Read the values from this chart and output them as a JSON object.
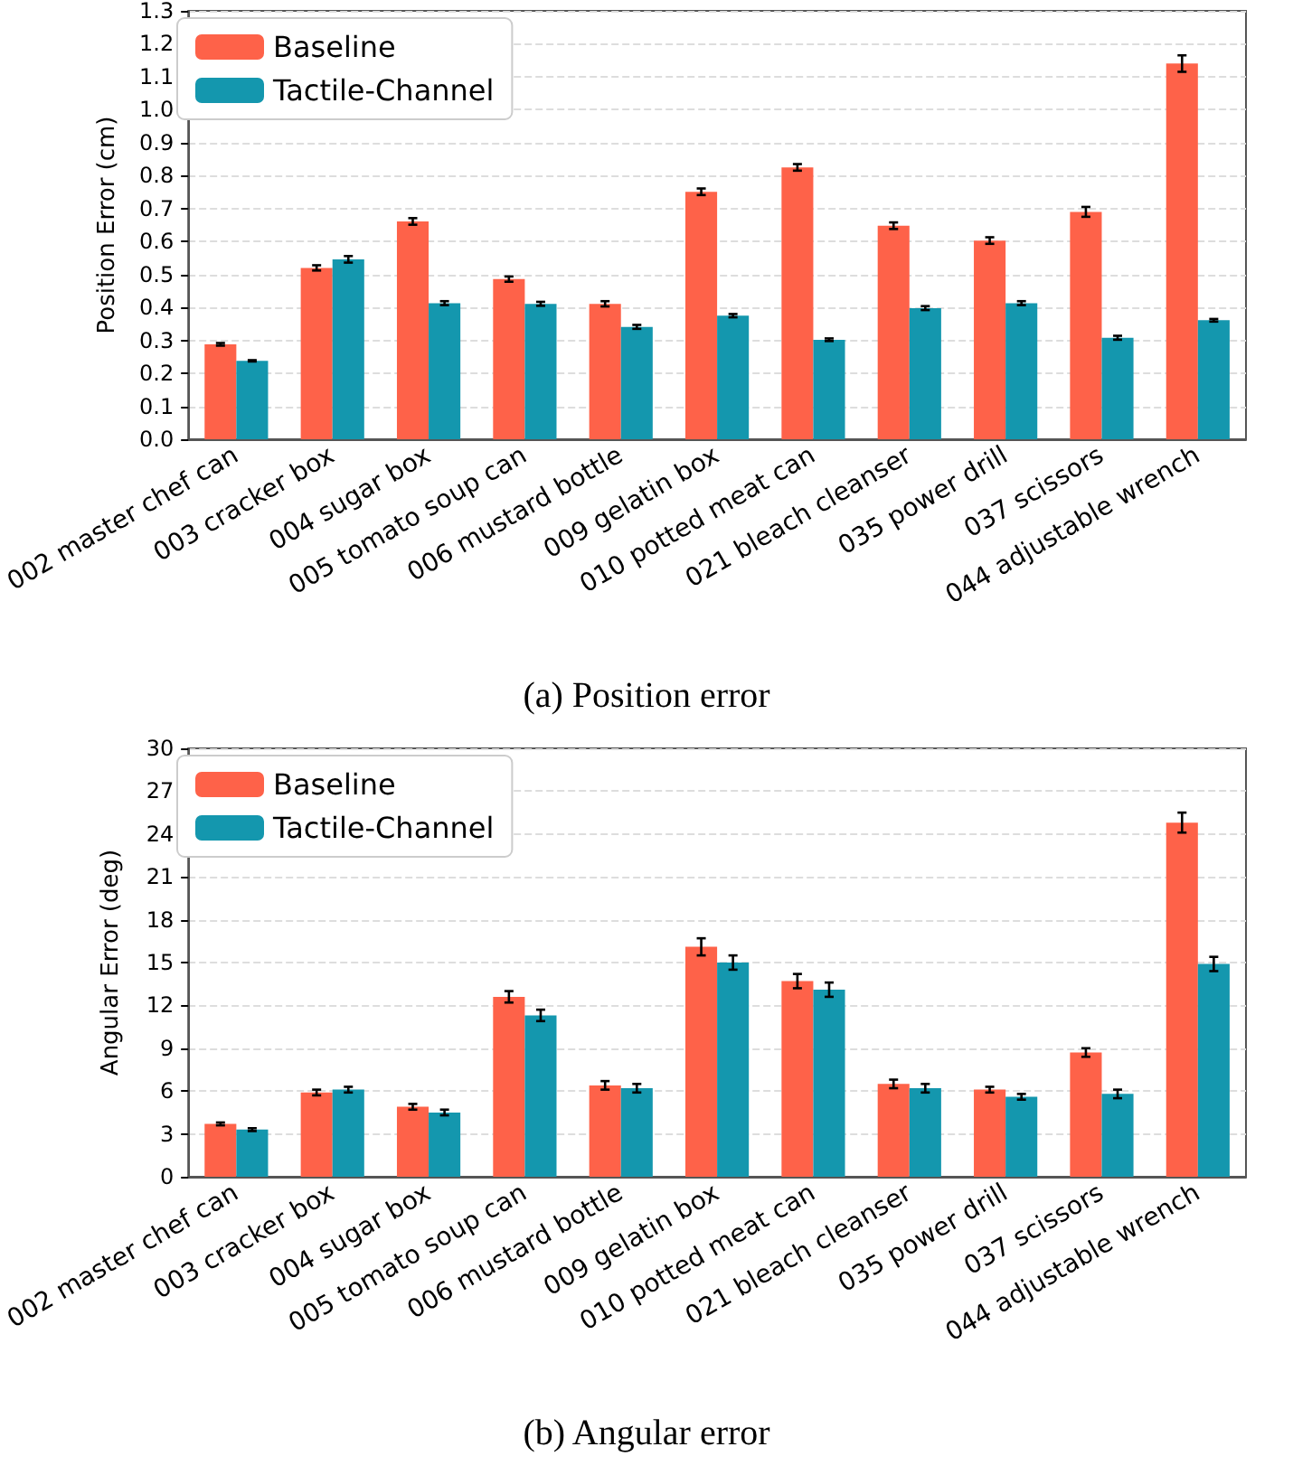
{
  "chart_data": [
    {
      "type": "bar",
      "title": "(a) Position error",
      "ylabel": "Position Error (cm)",
      "categories": [
        "002 master chef can",
        "003 cracker box",
        "004 sugar box",
        "005 tomato soup can",
        "006 mustard bottle",
        "009 gelatin box",
        "010 potted meat can",
        "021 bleach cleanser",
        "035 power drill",
        "037 scissors",
        "044 adjustable wrench"
      ],
      "series": [
        {
          "name": "Baseline",
          "color": "#fe6249",
          "values": [
            0.288,
            0.52,
            0.661,
            0.486,
            0.411,
            0.751,
            0.825,
            0.648,
            0.603,
            0.69,
            1.14
          ],
          "errors": [
            0.004,
            0.008,
            0.01,
            0.008,
            0.008,
            0.01,
            0.01,
            0.01,
            0.01,
            0.015,
            0.025
          ]
        },
        {
          "name": "Tactile-Channel",
          "color": "#1497ae",
          "values": [
            0.238,
            0.546,
            0.413,
            0.411,
            0.341,
            0.375,
            0.302,
            0.398,
            0.413,
            0.308,
            0.361
          ],
          "errors": [
            0.002,
            0.01,
            0.006,
            0.006,
            0.006,
            0.005,
            0.004,
            0.006,
            0.006,
            0.006,
            0.004
          ]
        }
      ],
      "ylim": [
        0,
        1.3
      ],
      "yticks": [
        {
          "value": 0,
          "label": "0.0"
        },
        {
          "value": 0.1,
          "label": "0.1"
        },
        {
          "value": 0.2,
          "label": "0.2"
        },
        {
          "value": 0.3,
          "label": "0.3"
        },
        {
          "value": 0.4,
          "label": "0.4"
        },
        {
          "value": 0.5,
          "label": "0.5"
        },
        {
          "value": 0.6,
          "label": "0.6"
        },
        {
          "value": 0.7,
          "label": "0.7"
        },
        {
          "value": 0.8,
          "label": "0.8"
        },
        {
          "value": 0.9,
          "label": "0.9"
        },
        {
          "value": 1.0,
          "label": "1.0"
        },
        {
          "value": 1.1,
          "label": "1.1"
        },
        {
          "value": 1.2,
          "label": "1.2"
        },
        {
          "value": 1.3,
          "label": "1.3"
        }
      ],
      "grid": "y",
      "legend": "top left"
    },
    {
      "type": "bar",
      "title": "(b) Angular error",
      "ylabel": "Angular Error (deg)",
      "categories": [
        "002 master chef can",
        "003 cracker box",
        "004 sugar box",
        "005 tomato soup can",
        "006 mustard bottle",
        "009 gelatin box",
        "010 potted meat can",
        "021 bleach cleanser",
        "035 power drill",
        "037 scissors",
        "044 adjustable wrench"
      ],
      "series": [
        {
          "name": "Baseline",
          "color": "#fe6249",
          "values": [
            3.7,
            5.9,
            4.9,
            12.6,
            6.4,
            16.1,
            13.7,
            6.5,
            6.1,
            8.7,
            24.8
          ],
          "errors": [
            0.1,
            0.2,
            0.2,
            0.4,
            0.3,
            0.6,
            0.5,
            0.3,
            0.2,
            0.3,
            0.7
          ]
        },
        {
          "name": "Tactile-Channel",
          "color": "#1497ae",
          "values": [
            3.3,
            6.1,
            4.5,
            11.3,
            6.2,
            15.0,
            13.1,
            6.2,
            5.6,
            5.8,
            14.9
          ],
          "errors": [
            0.1,
            0.2,
            0.2,
            0.4,
            0.3,
            0.5,
            0.5,
            0.3,
            0.2,
            0.3,
            0.5
          ]
        }
      ],
      "ylim": [
        0,
        30
      ],
      "yticks": [
        0,
        3,
        6,
        9,
        12,
        15,
        18,
        21,
        24,
        27,
        30
      ],
      "grid": "y",
      "legend": "top left"
    }
  ]
}
